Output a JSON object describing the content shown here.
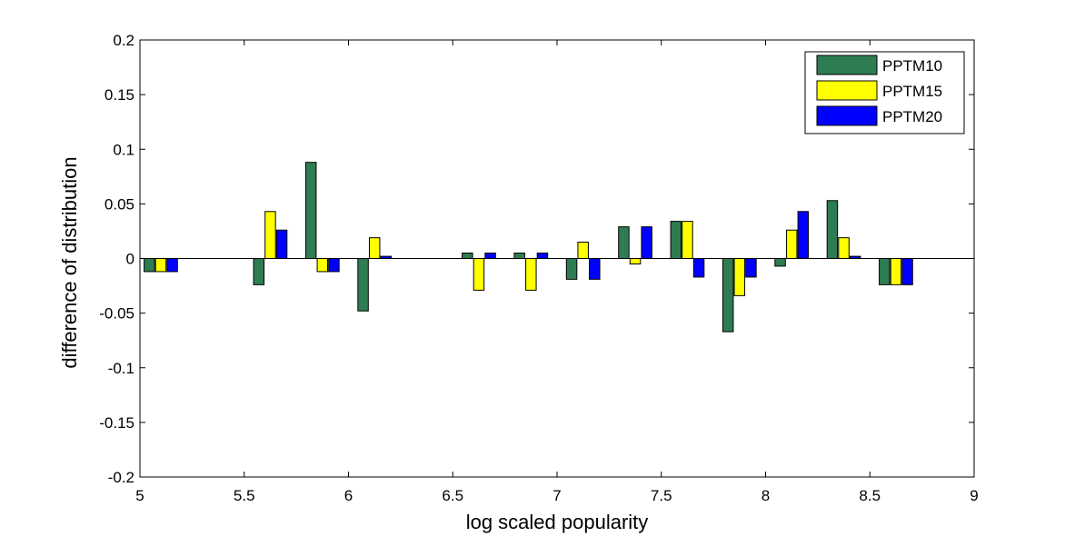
{
  "chart_data": {
    "type": "bar",
    "xlabel": "log scaled popularity",
    "ylabel": "difference of distribution",
    "xlim": [
      5,
      9
    ],
    "ylim": [
      -0.2,
      0.2
    ],
    "x_ticks": [
      "5",
      "5.5",
      "6",
      "6.5",
      "7",
      "7.5",
      "8",
      "8.5",
      "9"
    ],
    "y_ticks": [
      "-0.2",
      "-0.15",
      "-0.1",
      "-0.05",
      "0",
      "0.05",
      "0.1",
      "0.15",
      "0.2"
    ],
    "legend_position": "top-right",
    "group_centers": [
      5.1,
      5.625,
      5.875,
      6.125,
      6.625,
      6.875,
      7.125,
      7.375,
      7.625,
      7.875,
      8.125,
      8.375,
      8.625
    ],
    "series": [
      {
        "name": "PPTM10",
        "color": "#2e7d52",
        "values": [
          -0.012,
          -0.024,
          0.088,
          -0.048,
          0.005,
          0.005,
          -0.019,
          0.029,
          0.034,
          -0.067,
          -0.007,
          0.053,
          -0.024
        ]
      },
      {
        "name": "PPTM15",
        "color": "#ffff00",
        "values": [
          -0.012,
          0.043,
          -0.012,
          0.019,
          -0.029,
          -0.029,
          0.015,
          -0.005,
          0.034,
          -0.034,
          0.026,
          0.019,
          -0.024
        ]
      },
      {
        "name": "PPTM20",
        "color": "#0000ff",
        "values": [
          -0.012,
          0.026,
          -0.012,
          0.002,
          0.005,
          0.005,
          -0.019,
          0.029,
          -0.017,
          -0.017,
          0.043,
          0.002,
          -0.024
        ]
      }
    ]
  }
}
